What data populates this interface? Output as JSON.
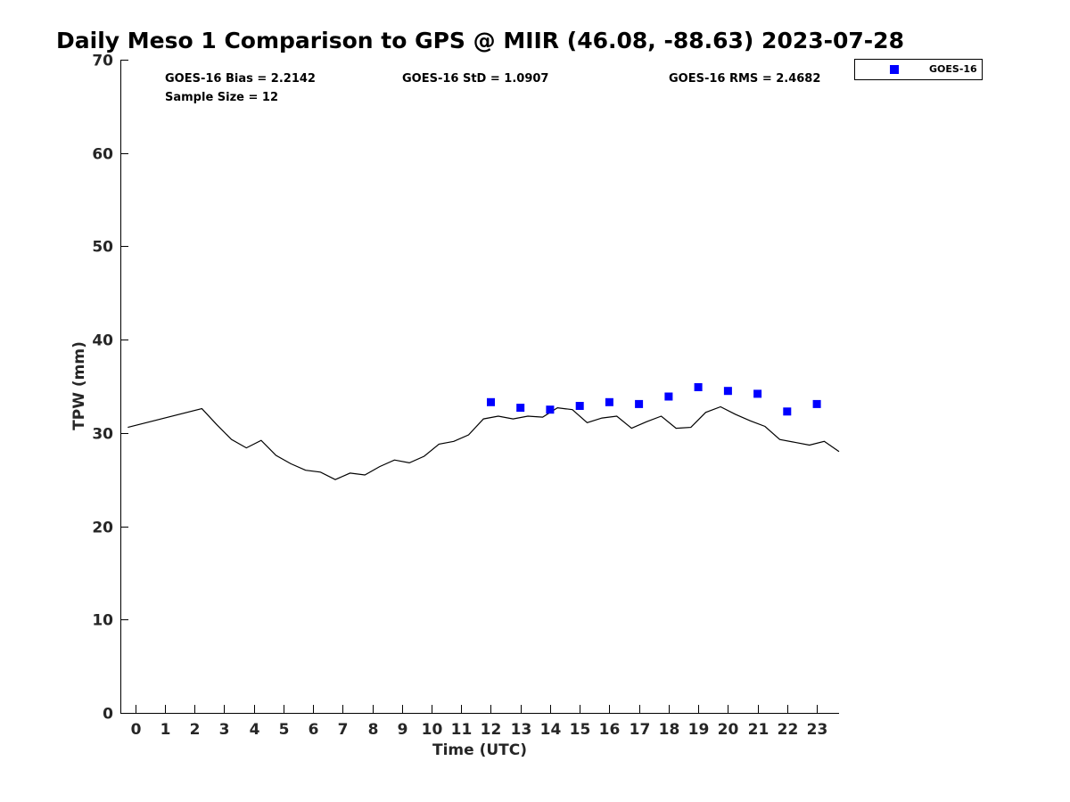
{
  "chart_data": {
    "type": "line",
    "title": "Daily Meso 1 Comparison to GPS @ MIIR (46.08, -88.63) 2023-07-28",
    "xlabel": "Time (UTC)",
    "ylabel": "TPW (mm)",
    "xlim": [
      -0.5,
      23.75
    ],
    "ylim": [
      0,
      70
    ],
    "x_ticks": [
      0,
      1,
      2,
      3,
      4,
      5,
      6,
      7,
      8,
      9,
      10,
      11,
      12,
      13,
      14,
      15,
      16,
      17,
      18,
      19,
      20,
      21,
      22,
      23
    ],
    "y_ticks": [
      0,
      10,
      20,
      30,
      40,
      50,
      60,
      70
    ],
    "grid": false,
    "legend": {
      "position": "top-right-outside",
      "entries": [
        "GOES-16"
      ]
    },
    "stats": {
      "bias": "GOES-16 Bias = 2.2142",
      "std": "GOES-16 StD = 1.0907",
      "rms": "GOES-16 RMS = 2.4682",
      "sample": "Sample Size = 12"
    },
    "series": [
      {
        "kind": "line",
        "color": "#000000",
        "x": [
          -0.25,
          2.25,
          2.75,
          3.25,
          3.75,
          4.25,
          4.75,
          5.25,
          5.75,
          6.25,
          6.75,
          7.25,
          7.75,
          8.25,
          8.75,
          9.25,
          9.75,
          10.25,
          10.75,
          11.25,
          11.75,
          12.25,
          12.75,
          13.25,
          13.75,
          14.25,
          14.75,
          15.25,
          15.75,
          16.25,
          16.75,
          17.25,
          17.75,
          18.25,
          18.75,
          19.25,
          19.75,
          20.25,
          20.75,
          21.25,
          21.75,
          22.25,
          22.75,
          23.25,
          23.75
        ],
        "y": [
          30.6,
          32.6,
          30.9,
          29.3,
          28.4,
          29.2,
          27.6,
          26.7,
          26.0,
          25.8,
          25.0,
          25.7,
          25.5,
          26.4,
          27.1,
          26.8,
          27.5,
          28.8,
          29.1,
          29.8,
          31.5,
          31.8,
          31.5,
          31.8,
          31.7,
          32.7,
          32.5,
          31.1,
          31.6,
          31.8,
          30.5,
          31.2,
          31.8,
          30.5,
          30.6,
          32.2,
          32.8,
          32.0,
          31.3,
          30.7,
          29.3,
          29.0,
          28.7,
          29.1,
          28.0
        ]
      },
      {
        "name": "GOES-16",
        "kind": "scatter",
        "color": "#0000ff",
        "x": [
          12,
          13,
          14,
          15,
          16,
          17,
          18,
          19,
          20,
          21,
          22,
          23
        ],
        "y": [
          33.3,
          32.7,
          32.5,
          32.9,
          33.3,
          33.1,
          33.9,
          34.9,
          34.5,
          34.2,
          32.3,
          33.1
        ]
      }
    ]
  }
}
